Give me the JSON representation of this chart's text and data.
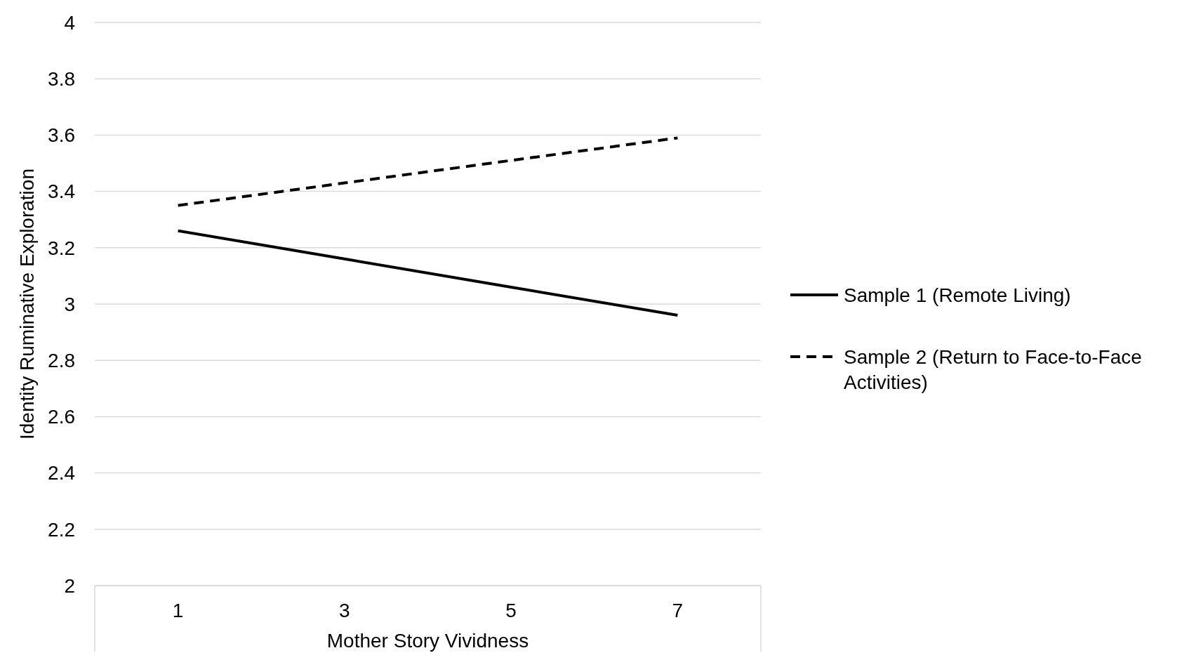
{
  "chart_data": {
    "type": "line",
    "xlabel": "Mother Story Vividness",
    "ylabel": "Identity Ruminative Exploration",
    "categories": [
      "1",
      "3",
      "5",
      "7"
    ],
    "series": [
      {
        "name": "Sample 1 (Remote Living)",
        "color": "#000000",
        "line_style": "solid",
        "values": [
          3.26,
          3.16,
          3.06,
          2.96
        ]
      },
      {
        "name": "Sample 2 (Return to Face-to-Face Activities)",
        "color": "#000000",
        "line_style": "dashed",
        "values": [
          3.35,
          3.43,
          3.51,
          3.59
        ]
      }
    ],
    "ylim": [
      2,
      4
    ],
    "yticks": [
      2,
      2.2,
      2.4,
      2.6,
      2.8,
      3,
      3.2,
      3.4,
      3.6,
      3.8,
      4
    ],
    "grid": "y",
    "legend": "right",
    "marker": "none"
  }
}
